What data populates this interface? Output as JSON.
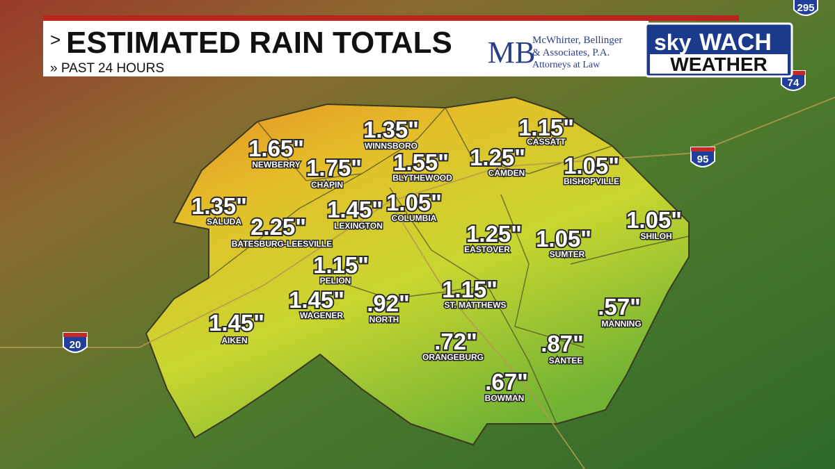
{
  "header": {
    "title": "ESTIMATED RAIN TOTALS",
    "subtitle": "» PAST 24 HOURS"
  },
  "sponsor": {
    "monogram": "MB",
    "line1": "McWhirter, Bellinger",
    "line2": "& Associates, P.A.",
    "line3": "Attorneys at Law"
  },
  "logo": {
    "sky": "sky",
    "wach": "WACH",
    "weather": "WEATHER"
  },
  "highway_shields": [
    "295",
    "74",
    "95",
    "20"
  ],
  "labels": [
    {
      "value": "1.35\"",
      "city": "WINNSBORO"
    },
    {
      "value": "1.15\"",
      "city": "CASSATT"
    },
    {
      "value": "1.65\"",
      "city": "NEWBERRY"
    },
    {
      "value": "1.75\"",
      "city": "CHAPIN"
    },
    {
      "value": "1.55\"",
      "city": "BLYTHEWOOD"
    },
    {
      "value": "1.25\"",
      "city": "CAMDEN"
    },
    {
      "value": "1.05\"",
      "city": "BISHOPVILLE"
    },
    {
      "value": "1.35\"",
      "city": "SALUDA"
    },
    {
      "value": "2.25\"",
      "city": "BATESBURG-LEESVILLE"
    },
    {
      "value": "1.45\"",
      "city": "LEXINGTON"
    },
    {
      "value": "1.05\"",
      "city": "COLUMBIA"
    },
    {
      "value": "1.05\"",
      "city": "SHILOH"
    },
    {
      "value": "1.25\"",
      "city": "EASTOVER"
    },
    {
      "value": "1.05\"",
      "city": "SUMTER"
    },
    {
      "value": "1.15\"",
      "city": "PELION"
    },
    {
      "value": "1.45\"",
      "city": "WAGENER"
    },
    {
      "value": ".92\"",
      "city": "NORTH"
    },
    {
      "value": "1.15\"",
      "city": "ST. MATTHEWS"
    },
    {
      "value": ".57\"",
      "city": "MANNING"
    },
    {
      "value": "1.45\"",
      "city": "AIKEN"
    },
    {
      "value": ".72\"",
      "city": "ORANGEBURG"
    },
    {
      "value": ".87\"",
      "city": "SANTEE"
    },
    {
      "value": ".67\"",
      "city": "BOWMAN"
    }
  ]
}
